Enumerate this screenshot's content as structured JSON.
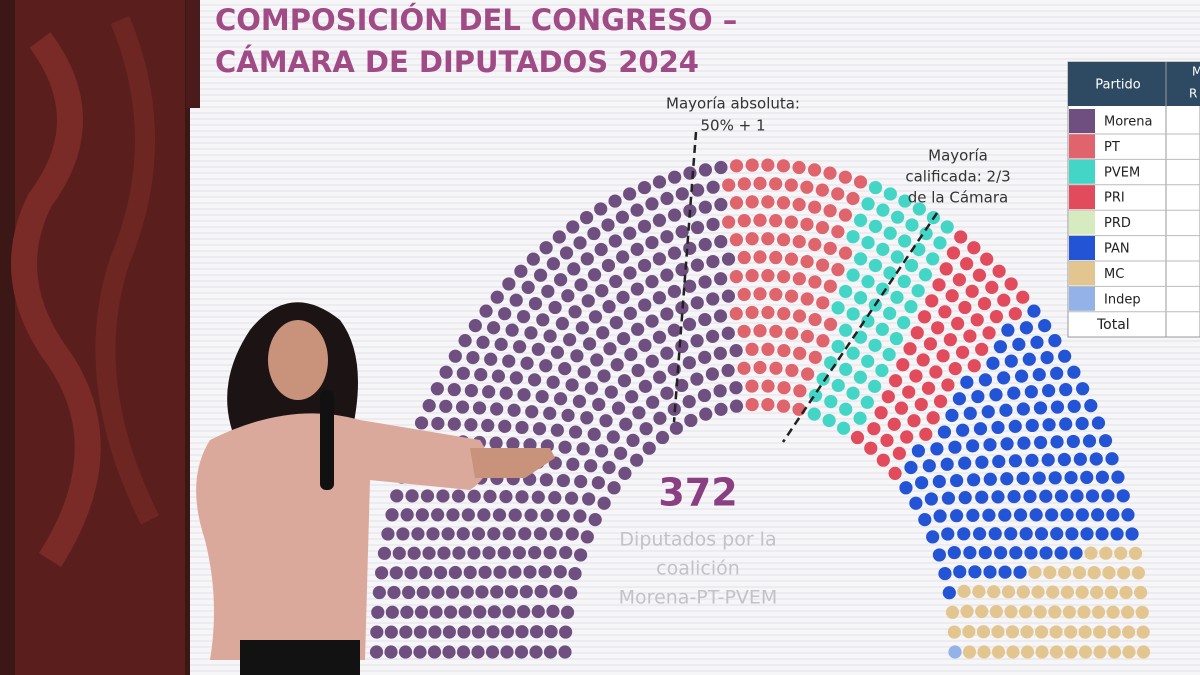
{
  "slide": {
    "title_lines": [
      "COMPOSICIÓN DEL CONGRESO –",
      "CÁMARA DE DIPUTADOS 2024"
    ],
    "majority_absolute": [
      "Mayoría absoluta:",
      "50% + 1"
    ],
    "majority_qualified": [
      "Mayoría",
      "calificada: 2/3",
      "de la Cámara"
    ],
    "coalition_total": "372",
    "coalition_caption": [
      "Diputados por la",
      "coalición",
      "Morena-PT-PVEM"
    ]
  },
  "table": {
    "headers": [
      "Partido",
      "M",
      "R"
    ],
    "rows": [
      "Morena",
      "PT",
      "PVEM",
      "PRI",
      "PRD",
      "PAN",
      "MC",
      "Indep"
    ],
    "total": "Total"
  }
}
